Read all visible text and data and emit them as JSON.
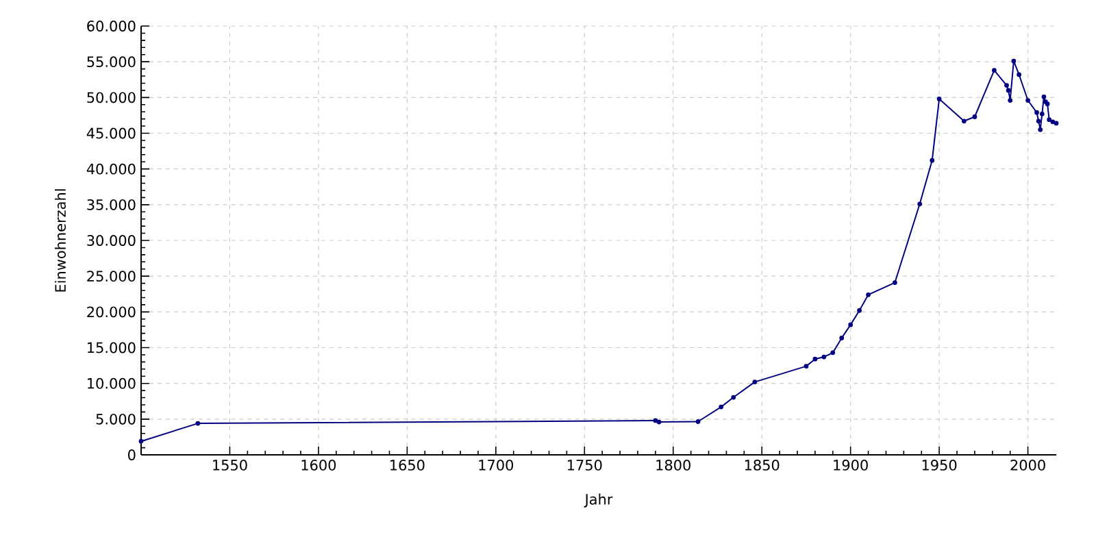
{
  "chart_data": {
    "type": "line",
    "xlabel": "Jahr",
    "ylabel": "Einwohnerzahl",
    "x": [
      1500,
      1532,
      1790,
      1792,
      1814,
      1827,
      1834,
      1846,
      1875,
      1880,
      1885,
      1890,
      1895,
      1900,
      1905,
      1910,
      1925,
      1939,
      1946,
      1950,
      1964,
      1970,
      1981,
      1988,
      1989,
      1990,
      1992,
      1995,
      2000,
      2005,
      2006,
      2007,
      2008,
      2009,
      2010,
      2011,
      2012,
      2014,
      2016
    ],
    "series": [
      {
        "color": "#000080",
        "values": [
          1900,
          4400,
          4800,
          4600,
          4650,
          6700,
          8050,
          10200,
          12400,
          13400,
          13700,
          14300,
          16350,
          18200,
          20200,
          22400,
          24100,
          35100,
          41200,
          49800,
          46700,
          47300,
          53800,
          51700,
          51000,
          49600,
          55100,
          53200,
          49600,
          47900,
          46700,
          45500,
          47700,
          50100,
          49400,
          49100,
          46900,
          46600,
          46400
        ]
      }
    ],
    "xlim": [
      1500,
      2016
    ],
    "ylim": [
      0,
      60000
    ],
    "xticks": [
      1550,
      1600,
      1650,
      1700,
      1750,
      1800,
      1850,
      1900,
      1950,
      2000
    ],
    "yticks": [
      {
        "value": 0,
        "label": "0"
      },
      {
        "value": 5000,
        "label": "5.000"
      },
      {
        "value": 10000,
        "label": "10.000"
      },
      {
        "value": 15000,
        "label": "15.000"
      },
      {
        "value": 20000,
        "label": "20.000"
      },
      {
        "value": 25000,
        "label": "25.000"
      },
      {
        "value": 30000,
        "label": "30.000"
      },
      {
        "value": 35000,
        "label": "35.000"
      },
      {
        "value": 40000,
        "label": "40.000"
      },
      {
        "value": 45000,
        "label": "45.000"
      },
      {
        "value": 50000,
        "label": "50.000"
      },
      {
        "value": 55000,
        "label": "55.000"
      },
      {
        "value": 60000,
        "label": "60.000"
      }
    ],
    "grid": true,
    "marker": "circle",
    "line_style": "solid"
  }
}
